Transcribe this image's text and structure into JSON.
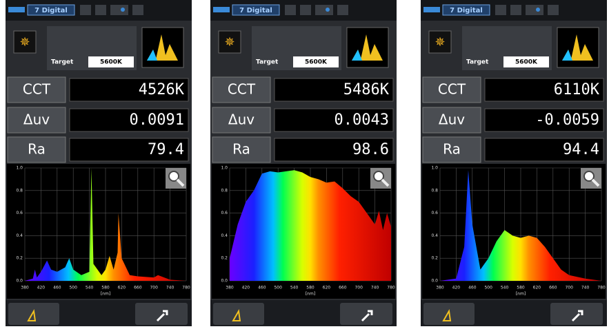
{
  "chart_axes": {
    "xlim": [
      380,
      780
    ],
    "xticks": [
      380,
      420,
      460,
      500,
      540,
      580,
      620,
      660,
      700,
      740,
      780
    ],
    "ylim": [
      0,
      1
    ],
    "yticks": [
      {
        "value": 0,
        "label": "0.0"
      },
      0.2,
      0.4,
      0.6,
      0.8,
      {
        "value": 1,
        "label": "1.0"
      }
    ],
    "x_label": "[nm]"
  },
  "screens": [
    {
      "mode": "7 Digital",
      "target_label": "Target",
      "target_value": "5600K",
      "rows": [
        {
          "label": "CCT",
          "value": "4526K"
        },
        {
          "label": "Δuv",
          "value": "0.0091"
        },
        {
          "label": "Ra",
          "value": "79.4"
        }
      ],
      "spectrum": {
        "x": [
          380,
          400,
          405,
          410,
          420,
          435,
          445,
          460,
          480,
          490,
          500,
          520,
          540,
          545,
          550,
          570,
          580,
          590,
          600,
          610,
          612,
          620,
          640,
          660,
          700,
          710,
          740,
          780
        ],
        "values": [
          0,
          0.02,
          0.1,
          0.03,
          0.08,
          0.18,
          0.1,
          0.08,
          0.12,
          0.2,
          0.1,
          0.05,
          0.08,
          1.0,
          0.15,
          0.05,
          0.1,
          0.22,
          0.1,
          0.25,
          0.6,
          0.2,
          0.05,
          0.04,
          0.03,
          0.05,
          0.01,
          0
        ]
      }
    },
    {
      "mode": "7 Digital",
      "target_label": "Target",
      "target_value": "5600K",
      "rows": [
        {
          "label": "CCT",
          "value": "5486K"
        },
        {
          "label": "Δuv",
          "value": "0.0043"
        },
        {
          "label": "Ra",
          "value": "98.6"
        }
      ],
      "spectrum": {
        "x": [
          380,
          400,
          420,
          440,
          460,
          480,
          500,
          520,
          540,
          560,
          580,
          600,
          620,
          640,
          660,
          680,
          700,
          720,
          740,
          750,
          760,
          770,
          780
        ],
        "values": [
          0.2,
          0.5,
          0.7,
          0.8,
          0.95,
          0.97,
          0.96,
          0.97,
          0.98,
          0.96,
          0.92,
          0.9,
          0.87,
          0.88,
          0.82,
          0.75,
          0.7,
          0.6,
          0.5,
          0.62,
          0.45,
          0.6,
          0.48
        ]
      }
    },
    {
      "mode": "7 Digital",
      "target_label": "Target",
      "target_value": "5600K",
      "rows": [
        {
          "label": "CCT",
          "value": "6110K"
        },
        {
          "label": "Δuv",
          "value": "-0.0059"
        },
        {
          "label": "Ra",
          "value": "94.4"
        }
      ],
      "spectrum": {
        "x": [
          380,
          420,
          440,
          450,
          460,
          480,
          500,
          520,
          540,
          560,
          580,
          600,
          620,
          640,
          660,
          680,
          700,
          740,
          780
        ],
        "values": [
          0,
          0.02,
          0.3,
          0.98,
          0.5,
          0.1,
          0.2,
          0.35,
          0.45,
          0.4,
          0.38,
          0.4,
          0.38,
          0.3,
          0.2,
          0.1,
          0.05,
          0.02,
          0
        ]
      }
    }
  ]
}
